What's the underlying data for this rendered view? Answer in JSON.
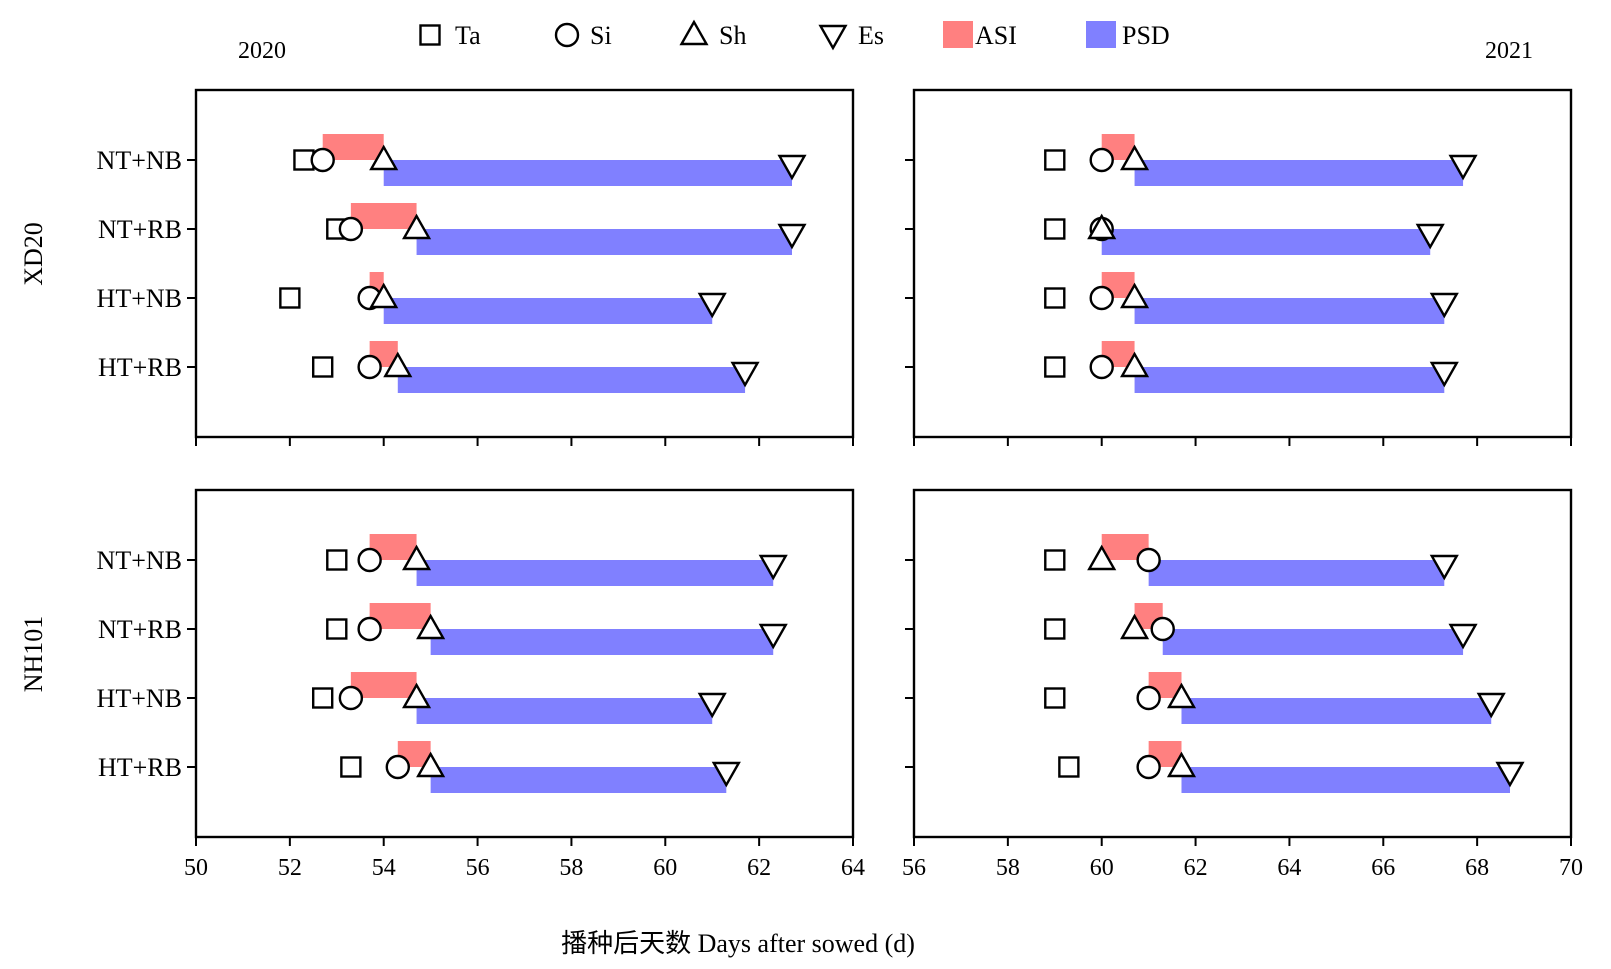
{
  "legend": {
    "items": [
      {
        "label": "Ta",
        "icon": "square-marker-icon"
      },
      {
        "label": "Si",
        "icon": "circle-marker-icon"
      },
      {
        "label": "Sh",
        "icon": "triangle-up-marker-icon"
      },
      {
        "label": "Es",
        "icon": "triangle-down-marker-icon"
      },
      {
        "label": "ASI",
        "icon": "swatch-icon",
        "color": "#FF8080"
      },
      {
        "label": "PSD",
        "icon": "swatch-icon",
        "color": "#8080FF"
      }
    ]
  },
  "year_labels": {
    "left": "2020",
    "right": "2021"
  },
  "row_group_labels": {
    "top": "XD20",
    "bottom": "NH101"
  },
  "xlabel": "播种后天数 Days after sowed (d)",
  "colors": {
    "asi": "#FF8080",
    "psd": "#8080FF"
  },
  "chart_data": [
    {
      "type": "bar",
      "panel": "XD20-2020",
      "year": "2020",
      "cultivar": "XD20",
      "xlim": [
        50,
        64
      ],
      "xticks": [
        "50",
        "52",
        "54",
        "56",
        "58",
        "60",
        "62",
        "64"
      ],
      "categories": [
        "NT+NB",
        "NT+RB",
        "HT+NB",
        "HT+RB"
      ],
      "series": [
        {
          "name": "Ta",
          "values": [
            52.3,
            53.0,
            52.0,
            52.7
          ]
        },
        {
          "name": "Si",
          "values": [
            52.7,
            53.3,
            53.7,
            53.7
          ]
        },
        {
          "name": "Sh",
          "values": [
            54.0,
            54.7,
            54.0,
            54.3
          ]
        },
        {
          "name": "Es",
          "values": [
            62.7,
            62.7,
            61.0,
            61.7
          ]
        }
      ]
    },
    {
      "type": "bar",
      "panel": "XD20-2021",
      "year": "2021",
      "cultivar": "XD20",
      "xlim": [
        56,
        70
      ],
      "xticks": [
        "56",
        "58",
        "60",
        "62",
        "64",
        "66",
        "68",
        "70"
      ],
      "categories": [
        "NT+NB",
        "NT+RB",
        "HT+NB",
        "HT+RB"
      ],
      "series": [
        {
          "name": "Ta",
          "values": [
            59.0,
            59.0,
            59.0,
            59.0
          ]
        },
        {
          "name": "Si",
          "values": [
            60.0,
            60.0,
            60.0,
            60.0
          ]
        },
        {
          "name": "Sh",
          "values": [
            60.7,
            60.0,
            60.7,
            60.7
          ]
        },
        {
          "name": "Es",
          "values": [
            67.7,
            67.0,
            67.3,
            67.3
          ]
        }
      ]
    },
    {
      "type": "bar",
      "panel": "NH101-2020",
      "year": "2020",
      "cultivar": "NH101",
      "xlim": [
        50,
        64
      ],
      "xticks": [
        "50",
        "52",
        "54",
        "56",
        "58",
        "60",
        "62",
        "64"
      ],
      "categories": [
        "NT+NB",
        "NT+RB",
        "HT+NB",
        "HT+RB"
      ],
      "series": [
        {
          "name": "Ta",
          "values": [
            53.0,
            53.0,
            52.7,
            53.3
          ]
        },
        {
          "name": "Si",
          "values": [
            53.7,
            53.7,
            53.3,
            54.3
          ]
        },
        {
          "name": "Sh",
          "values": [
            54.7,
            55.0,
            54.7,
            55.0
          ]
        },
        {
          "name": "Es",
          "values": [
            62.3,
            62.3,
            61.0,
            61.3
          ]
        }
      ]
    },
    {
      "type": "bar",
      "panel": "NH101-2021",
      "year": "2021",
      "cultivar": "NH101",
      "xlim": [
        56,
        70
      ],
      "xticks": [
        "56",
        "58",
        "60",
        "62",
        "64",
        "66",
        "68",
        "70"
      ],
      "categories": [
        "NT+NB",
        "NT+RB",
        "HT+NB",
        "HT+RB"
      ],
      "series": [
        {
          "name": "Ta",
          "values": [
            59.0,
            59.0,
            59.0,
            59.3
          ]
        },
        {
          "name": "Si",
          "values": [
            61.0,
            61.3,
            61.0,
            61.0
          ]
        },
        {
          "name": "Sh",
          "values": [
            60.0,
            60.7,
            61.7,
            61.7
          ]
        },
        {
          "name": "Es",
          "values": [
            67.3,
            67.7,
            68.3,
            68.7
          ]
        }
      ]
    }
  ]
}
